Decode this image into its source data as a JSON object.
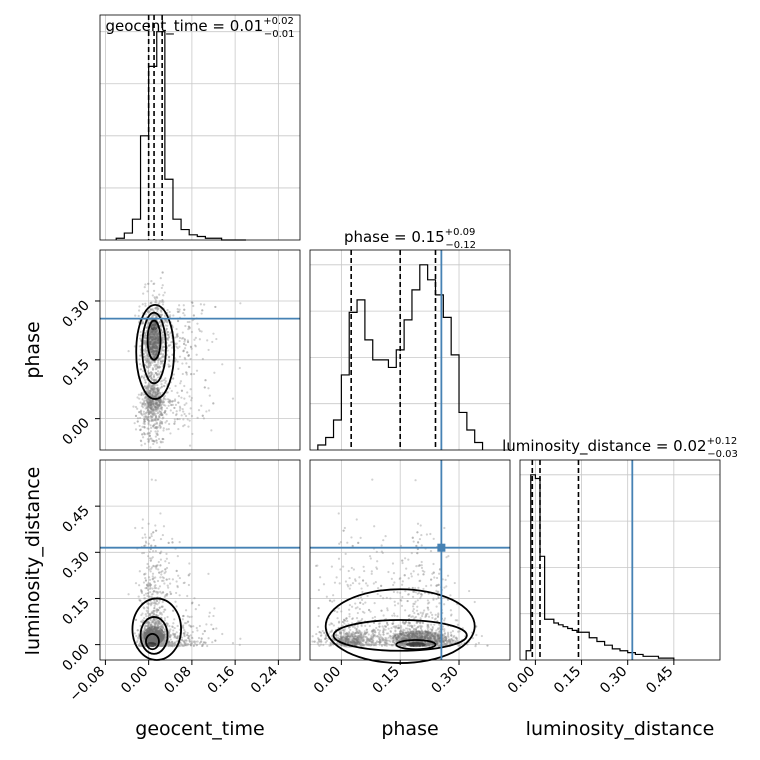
{
  "chart_data": {
    "type": "corner",
    "grid": true,
    "parameters": [
      "geocent_time",
      "phase",
      "luminosity_distance"
    ],
    "titles": [
      {
        "param": "geocent_time",
        "prefix": "geocent_time = ",
        "median": "0.01",
        "plus": "+0.02",
        "minus": "−0.01"
      },
      {
        "param": "phase",
        "prefix": "phase = ",
        "median": "0.15",
        "plus": "+0.09",
        "minus": "−0.12"
      },
      {
        "param": "luminosity_distance",
        "prefix": "luminosity_distance = ",
        "median": "0.02",
        "plus": "+0.12",
        "minus": "−0.03"
      }
    ],
    "axis_labels": {
      "x": [
        "geocent_time",
        "phase",
        "luminosity_distance"
      ],
      "y": [
        "phase",
        "luminosity_distance"
      ]
    },
    "ticks": {
      "geocent_time": {
        "range": [
          -0.09,
          0.28
        ],
        "values": [
          -0.08,
          0.0,
          0.08,
          0.16,
          0.24
        ],
        "labels": [
          "−0.08",
          "0.00",
          "0.08",
          "0.16",
          "0.24"
        ]
      },
      "phase": {
        "range": [
          -0.08,
          0.43
        ],
        "values": [
          0.0,
          0.15,
          0.3
        ],
        "labels": [
          "0.00",
          "0.15",
          "0.30"
        ]
      },
      "luminosity_distance": {
        "range": [
          -0.05,
          0.6
        ],
        "values": [
          0.0,
          0.15,
          0.3,
          0.45
        ],
        "labels": [
          "0.00",
          "0.15",
          "0.30",
          "0.45"
        ]
      }
    },
    "truths": {
      "geocent_time": null,
      "phase": 0.255,
      "luminosity_distance": 0.315
    },
    "truth_color": "#4682b4",
    "quantiles": {
      "geocent_time": [
        0.0,
        0.01,
        0.025
      ],
      "phase": [
        0.025,
        0.15,
        0.24
      ],
      "luminosity_distance": [
        -0.01,
        0.015,
        0.14
      ]
    },
    "histograms": {
      "geocent_time": {
        "edges": [
          -0.06,
          -0.045,
          -0.03,
          -0.015,
          0.0,
          0.015,
          0.03,
          0.045,
          0.06,
          0.075,
          0.09,
          0.105,
          0.12,
          0.135,
          0.15,
          0.165,
          0.18
        ],
        "counts": [
          1,
          4,
          12,
          60,
          100,
          120,
          35,
          12,
          6,
          3,
          2,
          1,
          1,
          0,
          0,
          0
        ]
      },
      "phase": {
        "edges": [
          -0.06,
          -0.04,
          -0.02,
          0.0,
          0.02,
          0.04,
          0.06,
          0.08,
          0.1,
          0.12,
          0.14,
          0.16,
          0.18,
          0.2,
          0.22,
          0.24,
          0.26,
          0.28,
          0.3,
          0.32,
          0.34,
          0.36
        ],
        "counts": [
          2,
          5,
          12,
          30,
          55,
          60,
          44,
          36,
          36,
          33,
          40,
          52,
          64,
          74,
          68,
          62,
          53,
          38,
          15,
          8,
          3
        ]
      },
      "luminosity_distance": {
        "edges": [
          -0.03,
          -0.015,
          0.0,
          0.015,
          0.03,
          0.045,
          0.06,
          0.075,
          0.09,
          0.105,
          0.12,
          0.135,
          0.15,
          0.175,
          0.2,
          0.225,
          0.25,
          0.275,
          0.3,
          0.325,
          0.35,
          0.4,
          0.45
        ],
        "counts": [
          5,
          100,
          98,
          56,
          22,
          22,
          20,
          19,
          18,
          17,
          16,
          15,
          15,
          12,
          10,
          8,
          6,
          5,
          4,
          3,
          2,
          1
        ]
      }
    }
  }
}
